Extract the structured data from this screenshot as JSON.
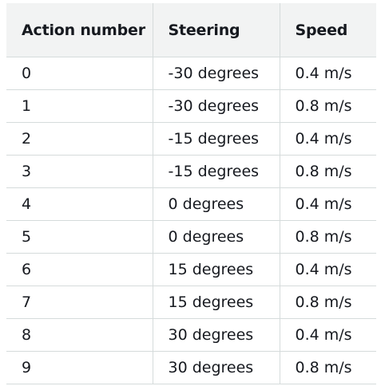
{
  "table": {
    "headers": [
      "Action number",
      "Steering",
      "Speed"
    ],
    "rows": [
      [
        "0",
        "-30 degrees",
        "0.4 m/s"
      ],
      [
        "1",
        "-30 degrees",
        "0.8 m/s"
      ],
      [
        "2",
        "-15 degrees",
        "0.4 m/s"
      ],
      [
        "3",
        "-15 degrees",
        "0.8 m/s"
      ],
      [
        "4",
        "0 degrees",
        "0.4 m/s"
      ],
      [
        "5",
        "0 degrees",
        "0.8 m/s"
      ],
      [
        "6",
        "15 degrees",
        "0.4 m/s"
      ],
      [
        "7",
        "15 degrees",
        "0.8 m/s"
      ],
      [
        "8",
        "30 degrees",
        "0.4 m/s"
      ],
      [
        "9",
        "30 degrees",
        "0.8 m/s"
      ]
    ]
  },
  "colors": {
    "header_bg": "#f2f3f3",
    "border": "#d5dbdb",
    "text": "#16191f"
  }
}
